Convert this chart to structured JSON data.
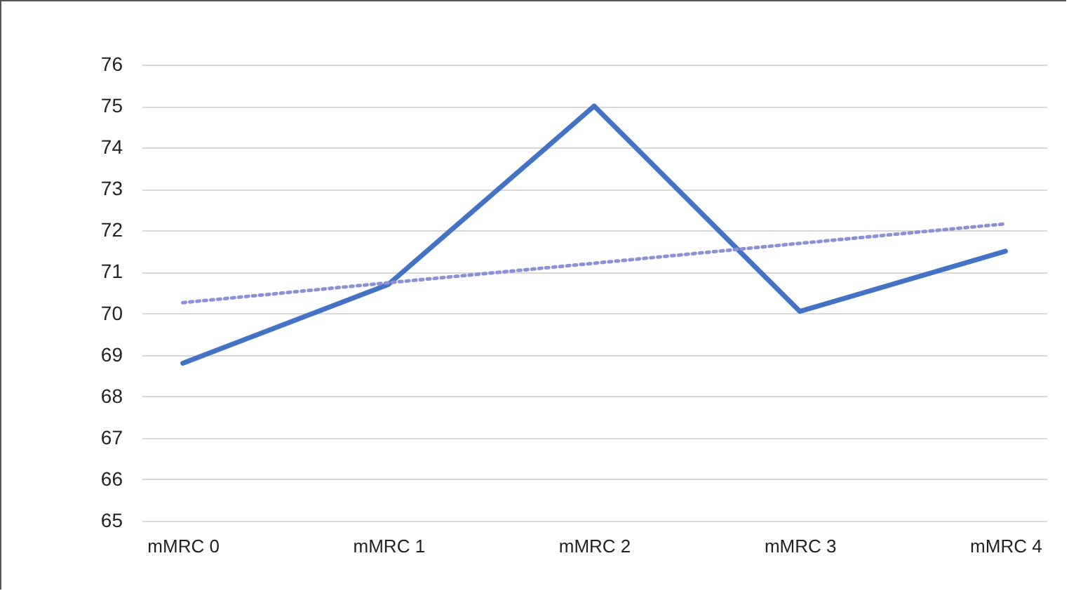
{
  "chart_data": {
    "type": "line",
    "categories": [
      "mMRC 0",
      "mMRC 1",
      "mMRC 2",
      "mMRC 3",
      "mMRC 4"
    ],
    "series": [
      {
        "type": "line",
        "color": "#4472c4",
        "line_style": "solid",
        "values": [
          68.8,
          70.7,
          75.0,
          70.05,
          71.5
        ]
      },
      {
        "type": "line",
        "color": "#8c90d4",
        "line_style": "dotted",
        "values": [
          70.26,
          70.74,
          71.21,
          71.69,
          72.16
        ]
      }
    ],
    "ylim": [
      65,
      76
    ],
    "yticks": [
      65,
      66,
      67,
      68,
      69,
      70,
      71,
      72,
      73,
      74,
      75,
      76
    ],
    "grid": "y",
    "marker": "none"
  }
}
